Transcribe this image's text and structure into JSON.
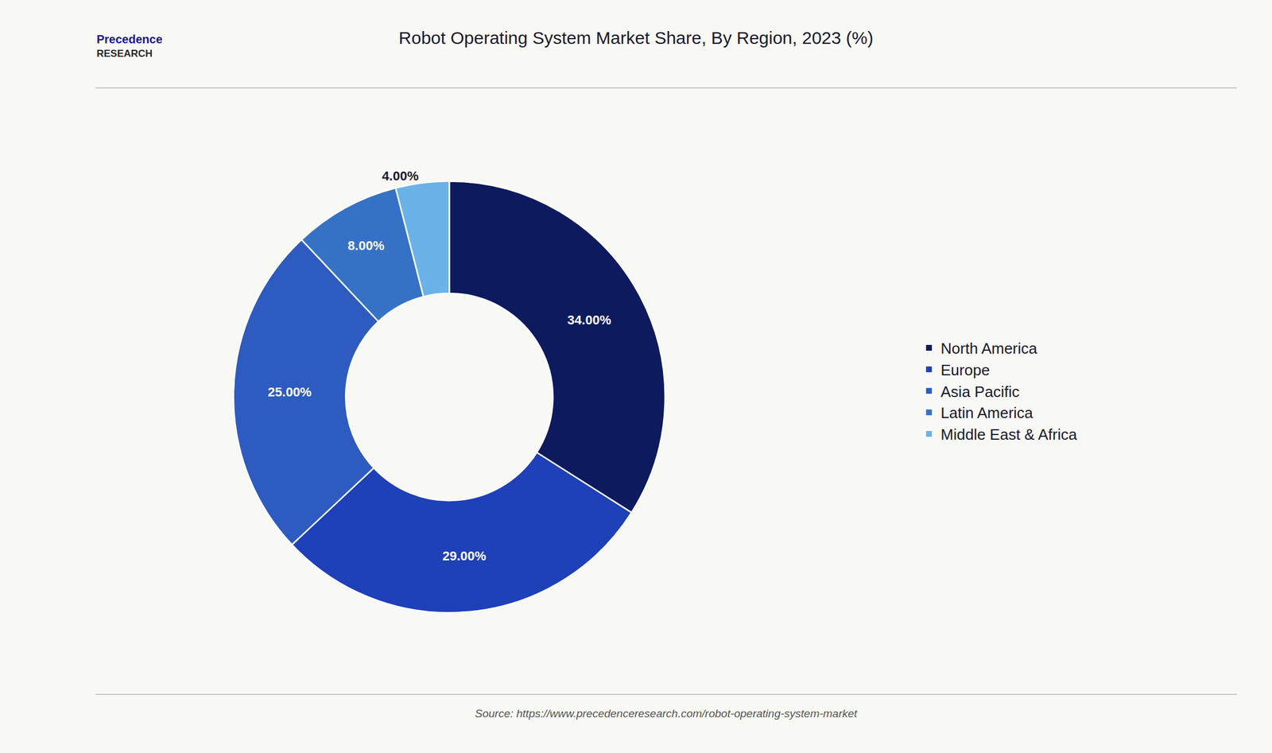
{
  "chart_data": {
    "type": "pie",
    "title": "Robot Operating System Market Share, By Region, 2023 (%)",
    "categories": [
      "North America",
      "Europe",
      "Asia Pacific",
      "Latin America",
      "Middle East & Africa"
    ],
    "values": [
      34.0,
      29.0,
      25.0,
      8.0,
      4.0
    ],
    "value_labels": [
      "34.00%",
      "29.00%",
      "25.00%",
      "8.00%",
      "4.00%"
    ],
    "colors": [
      "#0d1a5e",
      "#1e40b8",
      "#2d5bbf",
      "#3572c6",
      "#6ab2e8"
    ],
    "data_labels": true,
    "legend": "right",
    "annotations": [
      "Precedence",
      "RESEARCH",
      "Source: https://www.precedenceresearch.com/robot-operating-system-market"
    ]
  }
}
